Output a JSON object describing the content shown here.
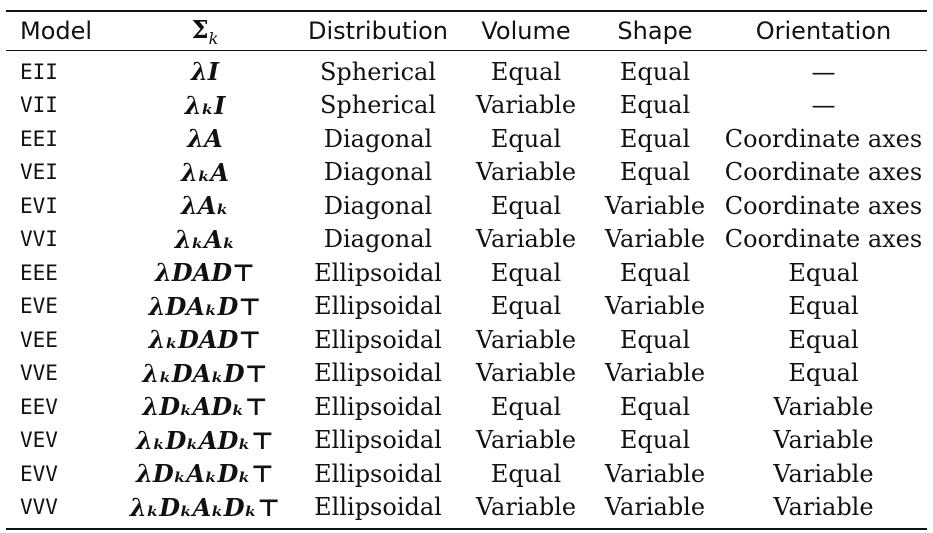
{
  "table": {
    "headers": {
      "model": "Model",
      "sigma": "Σ",
      "sigma_sub": "k",
      "distribution": "Distribution",
      "volume": "Volume",
      "shape": "Shape",
      "orientation": "Orientation"
    },
    "rows": [
      {
        "model": "EII",
        "sigma": "λI",
        "distribution": "Spherical",
        "volume": "Equal",
        "shape": "Equal",
        "orientation": "—"
      },
      {
        "model": "VII",
        "sigma": "λₖI",
        "distribution": "Spherical",
        "volume": "Variable",
        "shape": "Equal",
        "orientation": "—"
      },
      {
        "model": "EEI",
        "sigma": "λA",
        "distribution": "Diagonal",
        "volume": "Equal",
        "shape": "Equal",
        "orientation": "Coordinate axes"
      },
      {
        "model": "VEI",
        "sigma": "λₖA",
        "distribution": "Diagonal",
        "volume": "Variable",
        "shape": "Equal",
        "orientation": "Coordinate axes"
      },
      {
        "model": "EVI",
        "sigma": "λAₖ",
        "distribution": "Diagonal",
        "volume": "Equal",
        "shape": "Variable",
        "orientation": "Coordinate axes"
      },
      {
        "model": "VVI",
        "sigma": "λₖAₖ",
        "distribution": "Diagonal",
        "volume": "Variable",
        "shape": "Variable",
        "orientation": "Coordinate axes"
      },
      {
        "model": "EEE",
        "sigma": "λDAD⊤",
        "distribution": "Ellipsoidal",
        "volume": "Equal",
        "shape": "Equal",
        "orientation": "Equal"
      },
      {
        "model": "EVE",
        "sigma": "λDAₖD⊤",
        "distribution": "Ellipsoidal",
        "volume": "Equal",
        "shape": "Variable",
        "orientation": "Equal"
      },
      {
        "model": "VEE",
        "sigma": "λₖDAD⊤",
        "distribution": "Ellipsoidal",
        "volume": "Variable",
        "shape": "Equal",
        "orientation": "Equal"
      },
      {
        "model": "VVE",
        "sigma": "λₖDAₖD⊤",
        "distribution": "Ellipsoidal",
        "volume": "Variable",
        "shape": "Variable",
        "orientation": "Equal"
      },
      {
        "model": "EEV",
        "sigma": "λDₖADₖ⊤",
        "distribution": "Ellipsoidal",
        "volume": "Equal",
        "shape": "Equal",
        "orientation": "Variable"
      },
      {
        "model": "VEV",
        "sigma": "λₖDₖADₖ⊤",
        "distribution": "Ellipsoidal",
        "volume": "Variable",
        "shape": "Equal",
        "orientation": "Variable"
      },
      {
        "model": "EVV",
        "sigma": "λDₖAₖDₖ⊤",
        "distribution": "Ellipsoidal",
        "volume": "Equal",
        "shape": "Variable",
        "orientation": "Variable"
      },
      {
        "model": "VVV",
        "sigma": "λₖDₖAₖDₖ⊤",
        "distribution": "Ellipsoidal",
        "volume": "Variable",
        "shape": "Variable",
        "orientation": "Variable"
      }
    ]
  }
}
